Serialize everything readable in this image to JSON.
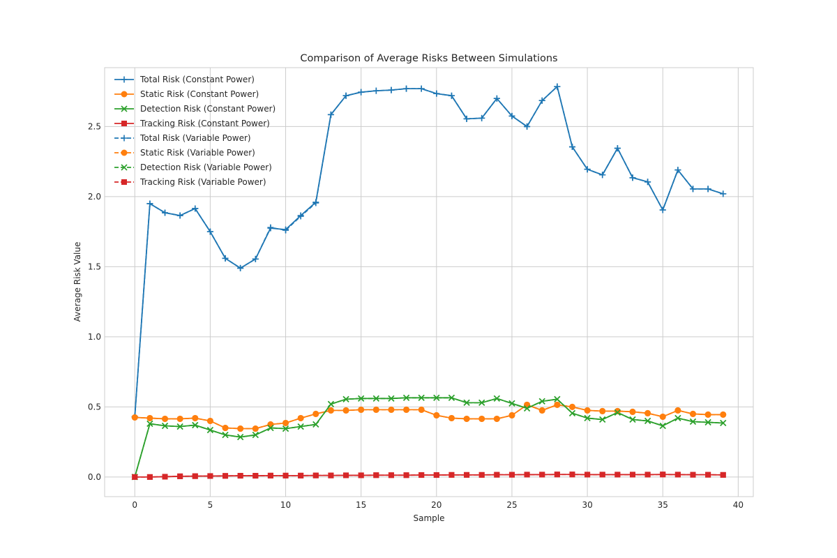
{
  "chart_data": {
    "type": "line",
    "title": "Comparison of Average Risks Between Simulations",
    "xlabel": "Sample",
    "ylabel": "Average Risk Value",
    "xlim": [
      -2,
      41
    ],
    "ylim": [
      -0.14,
      2.92
    ],
    "xticks": [
      0,
      5,
      10,
      15,
      20,
      25,
      30,
      35,
      40
    ],
    "xtick_labels": [
      "0",
      "5",
      "10",
      "15",
      "20",
      "25",
      "30",
      "35",
      "40"
    ],
    "yticks": [
      0.0,
      0.5,
      1.0,
      1.5,
      2.0,
      2.5
    ],
    "ytick_labels": [
      "0.0",
      "0.5",
      "1.0",
      "1.5",
      "2.0",
      "2.5"
    ],
    "grid": true,
    "legend_position": "upper-left",
    "x": [
      0,
      1,
      2,
      3,
      4,
      5,
      6,
      7,
      8,
      9,
      10,
      11,
      12,
      13,
      14,
      15,
      16,
      17,
      18,
      19,
      20,
      21,
      22,
      23,
      24,
      25,
      26,
      27,
      28,
      29,
      30,
      31,
      32,
      33,
      34,
      35,
      36,
      37,
      38,
      39
    ],
    "series": [
      {
        "name": "Total Risk (Constant Power)",
        "color": "#1f77b4",
        "linestyle": "solid",
        "marker": "plus",
        "values": [
          0.43,
          1.95,
          1.885,
          1.865,
          1.915,
          1.75,
          1.56,
          1.49,
          1.555,
          1.775,
          1.765,
          1.865,
          1.96,
          2.585,
          2.72,
          2.745,
          2.755,
          2.76,
          2.77,
          2.77,
          2.735,
          2.72,
          2.555,
          2.56,
          2.7,
          2.575,
          2.5,
          2.685,
          2.785,
          2.355,
          2.195,
          2.155,
          2.345,
          2.135,
          2.105,
          1.905,
          2.19,
          2.055,
          2.055,
          2.02
        ]
      },
      {
        "name": "Static Risk (Constant Power)",
        "color": "#ff7f0e",
        "linestyle": "solid",
        "marker": "circle",
        "values": [
          0.425,
          0.42,
          0.415,
          0.415,
          0.42,
          0.4,
          0.35,
          0.345,
          0.345,
          0.375,
          0.385,
          0.42,
          0.45,
          0.475,
          0.475,
          0.48,
          0.48,
          0.48,
          0.48,
          0.48,
          0.44,
          0.42,
          0.415,
          0.415,
          0.415,
          0.44,
          0.515,
          0.475,
          0.515,
          0.5,
          0.475,
          0.47,
          0.47,
          0.465,
          0.455,
          0.43,
          0.475,
          0.45,
          0.445,
          0.445
        ]
      },
      {
        "name": "Detection Risk (Constant Power)",
        "color": "#2ca02c",
        "linestyle": "solid",
        "marker": "x",
        "values": [
          0.0,
          0.38,
          0.365,
          0.36,
          0.37,
          0.335,
          0.3,
          0.285,
          0.3,
          0.35,
          0.345,
          0.36,
          0.375,
          0.52,
          0.555,
          0.56,
          0.56,
          0.56,
          0.565,
          0.565,
          0.565,
          0.565,
          0.53,
          0.53,
          0.56,
          0.525,
          0.49,
          0.54,
          0.555,
          0.455,
          0.42,
          0.41,
          0.46,
          0.41,
          0.4,
          0.365,
          0.42,
          0.395,
          0.39,
          0.385
        ]
      },
      {
        "name": "Tracking Risk (Constant Power)",
        "color": "#d62728",
        "linestyle": "solid",
        "marker": "square",
        "values": [
          0.0,
          0.0,
          0.002,
          0.005,
          0.006,
          0.007,
          0.008,
          0.009,
          0.009,
          0.01,
          0.01,
          0.01,
          0.011,
          0.011,
          0.012,
          0.012,
          0.013,
          0.013,
          0.013,
          0.014,
          0.014,
          0.015,
          0.015,
          0.015,
          0.016,
          0.016,
          0.017,
          0.017,
          0.018,
          0.018,
          0.017,
          0.017,
          0.017,
          0.017,
          0.017,
          0.018,
          0.017,
          0.016,
          0.016,
          0.015
        ]
      },
      {
        "name": "Total Risk (Variable Power)",
        "color": "#1f77b4",
        "linestyle": "dashed",
        "marker": "plus",
        "values": [
          0.43,
          1.95,
          1.885,
          1.865,
          1.915,
          1.75,
          1.56,
          1.49,
          1.555,
          1.78,
          1.76,
          1.86,
          1.955,
          2.585,
          2.72,
          2.745,
          2.755,
          2.76,
          2.77,
          2.77,
          2.735,
          2.72,
          2.555,
          2.56,
          2.7,
          2.575,
          2.5,
          2.685,
          2.785,
          2.355,
          2.195,
          2.155,
          2.345,
          2.135,
          2.105,
          1.905,
          2.19,
          2.055,
          2.055,
          2.02
        ]
      },
      {
        "name": "Static Risk (Variable Power)",
        "color": "#ff7f0e",
        "linestyle": "dashed",
        "marker": "circle",
        "values": [
          0.425,
          0.42,
          0.415,
          0.415,
          0.42,
          0.4,
          0.35,
          0.345,
          0.345,
          0.375,
          0.385,
          0.42,
          0.45,
          0.475,
          0.475,
          0.48,
          0.48,
          0.48,
          0.48,
          0.48,
          0.44,
          0.42,
          0.415,
          0.415,
          0.415,
          0.44,
          0.515,
          0.475,
          0.515,
          0.5,
          0.475,
          0.47,
          0.47,
          0.465,
          0.455,
          0.43,
          0.475,
          0.45,
          0.445,
          0.445
        ]
      },
      {
        "name": "Detection Risk (Variable Power)",
        "color": "#2ca02c",
        "linestyle": "dashed",
        "marker": "x",
        "values": [
          0.0,
          0.38,
          0.365,
          0.36,
          0.37,
          0.335,
          0.3,
          0.285,
          0.3,
          0.35,
          0.345,
          0.36,
          0.375,
          0.52,
          0.555,
          0.56,
          0.56,
          0.56,
          0.565,
          0.565,
          0.565,
          0.565,
          0.53,
          0.53,
          0.56,
          0.525,
          0.49,
          0.54,
          0.555,
          0.455,
          0.42,
          0.41,
          0.46,
          0.41,
          0.4,
          0.365,
          0.42,
          0.395,
          0.39,
          0.385
        ]
      },
      {
        "name": "Tracking Risk (Variable Power)",
        "color": "#d62728",
        "linestyle": "dashed",
        "marker": "square",
        "values": [
          0.0,
          0.0,
          0.002,
          0.005,
          0.006,
          0.007,
          0.008,
          0.009,
          0.009,
          0.01,
          0.01,
          0.01,
          0.011,
          0.011,
          0.012,
          0.012,
          0.013,
          0.013,
          0.013,
          0.014,
          0.014,
          0.015,
          0.015,
          0.015,
          0.016,
          0.016,
          0.017,
          0.017,
          0.018,
          0.018,
          0.017,
          0.017,
          0.017,
          0.017,
          0.017,
          0.018,
          0.017,
          0.016,
          0.016,
          0.015
        ]
      }
    ]
  },
  "colors": {
    "grid": "#cccccc",
    "axes_edge": "#cccccc",
    "text": "#262626",
    "background": "#ffffff"
  }
}
